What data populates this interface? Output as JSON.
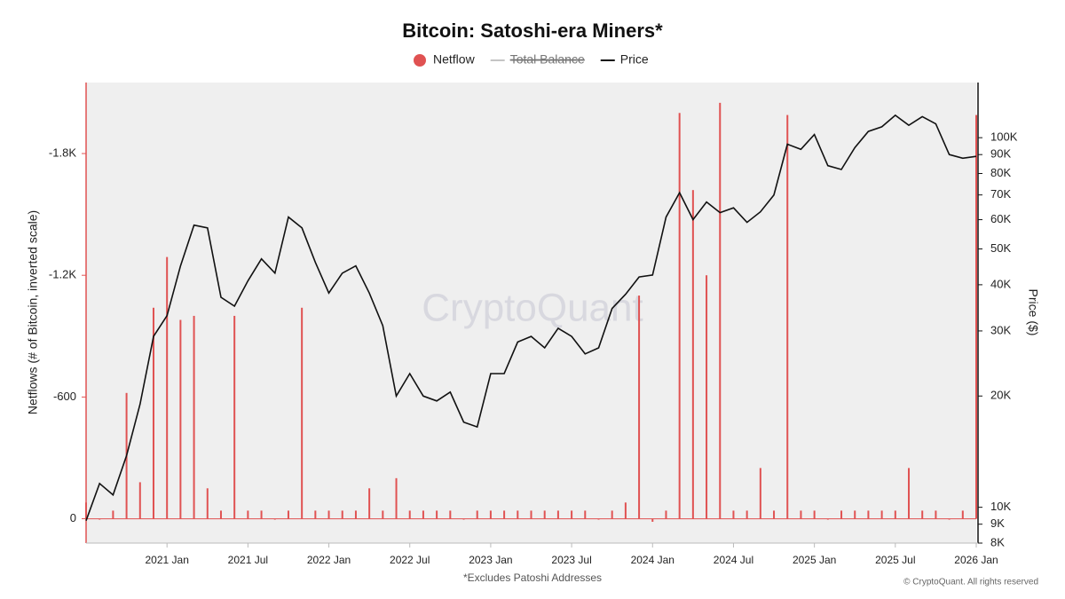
{
  "chart_data": {
    "type": "bar-line",
    "title": "Bitcoin: Satoshi-era Miners*",
    "ylabel": "Netflows (# of Bitcoin, inverted scale)",
    "y2label": "Price ($)",
    "footnote": "*Excludes Patoshi Addresses",
    "copyright": "© CryptoQuant. All rights reserved",
    "watermark": "CryptoQuant",
    "x": [
      "2020-07",
      "2020-08",
      "2020-09",
      "2020-10",
      "2020-11",
      "2020-12",
      "2021-01",
      "2021-02",
      "2021-03",
      "2021-04",
      "2021-05",
      "2021-06",
      "2021-07",
      "2021-08",
      "2021-09",
      "2021-10",
      "2021-11",
      "2021-12",
      "2022-01",
      "2022-02",
      "2022-03",
      "2022-04",
      "2022-05",
      "2022-06",
      "2022-07",
      "2022-08",
      "2022-09",
      "2022-10",
      "2022-11",
      "2022-12",
      "2023-01",
      "2023-02",
      "2023-03",
      "2023-04",
      "2023-05",
      "2023-06",
      "2023-07",
      "2023-08",
      "2023-09",
      "2023-10",
      "2023-11",
      "2023-12",
      "2024-01",
      "2024-02",
      "2024-03",
      "2024-04",
      "2024-05",
      "2024-06",
      "2024-07",
      "2024-08",
      "2024-09",
      "2024-10",
      "2024-11",
      "2024-12",
      "2025-01",
      "2025-02",
      "2025-03",
      "2025-04",
      "2025-05",
      "2025-06",
      "2025-07",
      "2025-08",
      "2025-09",
      "2025-10",
      "2025-11",
      "2025-12",
      "2026-01"
    ],
    "series": [
      {
        "name": "Netflow",
        "color": "#e05252",
        "kind": "bar",
        "values": [
          -80,
          0,
          -40,
          -620,
          -180,
          -1040,
          -1290,
          -980,
          -1000,
          -150,
          -40,
          -1000,
          -40,
          -40,
          0,
          -40,
          -1040,
          -40,
          -40,
          -40,
          -40,
          -150,
          -40,
          -200,
          -40,
          -40,
          -40,
          -40,
          0,
          -40,
          -40,
          -40,
          -40,
          -40,
          -40,
          -40,
          -40,
          -40,
          0,
          -40,
          -80,
          -1100,
          15,
          -40,
          -2000,
          -1620,
          -1200,
          -2050,
          -40,
          -40,
          -250,
          -40,
          -1990,
          -40,
          -40,
          0,
          -40,
          -40,
          -40,
          -40,
          -40,
          -250,
          -40,
          -40,
          0,
          -40,
          -1990
        ]
      },
      {
        "name": "Price",
        "color": "#111111",
        "kind": "line",
        "axis": "y2",
        "values": [
          9200,
          11600,
          10800,
          13800,
          19000,
          29000,
          33000,
          45000,
          58000,
          57000,
          37000,
          35000,
          41000,
          47000,
          43000,
          61000,
          57000,
          46000,
          38000,
          43000,
          45000,
          38000,
          31000,
          20000,
          23000,
          20000,
          19400,
          20500,
          17000,
          16500,
          23000,
          23000,
          28000,
          29000,
          27000,
          30500,
          29000,
          26000,
          27000,
          34500,
          37700,
          42000,
          42500,
          61000,
          71000,
          60000,
          67000,
          62700,
          64600,
          59000,
          63000,
          70000,
          96000,
          93000,
          102000,
          84000,
          82000,
          94000,
          104000,
          107000,
          115000,
          108000,
          114000,
          109000,
          90000,
          88000,
          89000
        ]
      }
    ],
    "hidden_series": [
      {
        "name": "Total Balance"
      }
    ],
    "xlim": [
      "2020-07",
      "2026-01"
    ],
    "xticks": [
      {
        "value": "2021-01",
        "label": "2021 Jan"
      },
      {
        "value": "2021-07",
        "label": "2021 Jul"
      },
      {
        "value": "2022-01",
        "label": "2022 Jan"
      },
      {
        "value": "2022-07",
        "label": "2022 Jul"
      },
      {
        "value": "2023-01",
        "label": "2023 Jan"
      },
      {
        "value": "2023-07",
        "label": "2023 Jul"
      },
      {
        "value": "2024-01",
        "label": "2024 Jan"
      },
      {
        "value": "2024-07",
        "label": "2024 Jul"
      },
      {
        "value": "2025-01",
        "label": "2025 Jan"
      },
      {
        "value": "2025-07",
        "label": "2025 Jul"
      },
      {
        "value": "2026-01",
        "label": "2026 Jan"
      }
    ],
    "ylim": [
      120,
      -2150
    ],
    "yticks": [
      0,
      -600,
      {
        "value": -1200,
        "label": "-1.2K"
      },
      {
        "value": -1800,
        "label": "-1.8K"
      }
    ],
    "y2lim": [
      8000,
      141000
    ],
    "y2_log": true,
    "y2ticks": [
      {
        "value": 8000,
        "label": "8K"
      },
      {
        "value": 9000,
        "label": "9K"
      },
      {
        "value": 10000,
        "label": "10K"
      },
      {
        "value": 20000,
        "label": "20K"
      },
      {
        "value": 30000,
        "label": "30K"
      },
      {
        "value": 40000,
        "label": "40K"
      },
      {
        "value": 50000,
        "label": "50K"
      },
      {
        "value": 60000,
        "label": "60K"
      },
      {
        "value": 70000,
        "label": "70K"
      },
      {
        "value": 80000,
        "label": "80K"
      },
      {
        "value": 90000,
        "label": "90K"
      },
      {
        "value": 100000,
        "label": "100K"
      }
    ]
  }
}
